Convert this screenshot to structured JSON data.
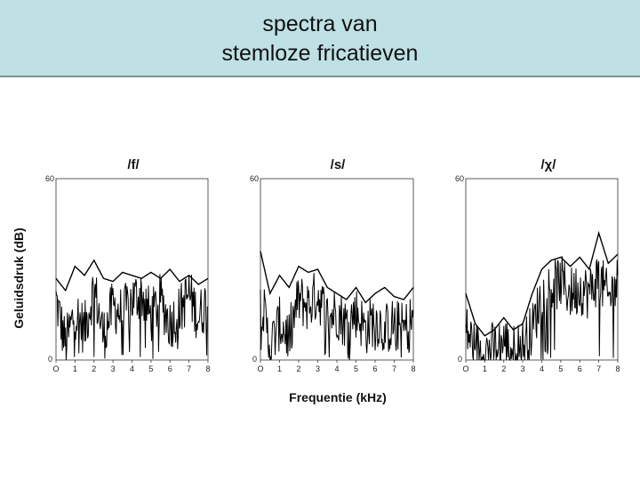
{
  "slide": {
    "title_line1": "spectra van",
    "title_line2": "stemloze fricatieven",
    "header_color": "#bfe0e4"
  },
  "chart_data": {
    "type": "line",
    "xlabel": "Frequentie (kHz)",
    "ylabel": "Geluidsdruk (dB)",
    "xlim": [
      0,
      8
    ],
    "ylim": [
      0,
      60
    ],
    "x_tick_labels": [
      "O",
      "1",
      "2",
      "3",
      "4",
      "5",
      "6",
      "7",
      "8"
    ],
    "y_tick_labels": [
      "0",
      "60"
    ],
    "panels": [
      {
        "title": "/f/",
        "envelope": {
          "x": [
            0,
            0.5,
            1,
            1.5,
            2,
            2.5,
            3,
            3.5,
            4,
            4.5,
            5,
            5.5,
            6,
            6.5,
            7,
            7.5,
            8
          ],
          "y": [
            27,
            23,
            31,
            28,
            33,
            27,
            26,
            29,
            28,
            27,
            29,
            27,
            30,
            26,
            28,
            25,
            27
          ]
        },
        "spectrum": {
          "x": [
            0,
            0.5,
            1,
            1.5,
            2,
            2.5,
            3,
            3.5,
            4,
            4.5,
            5,
            5.5,
            6,
            6.5,
            7,
            7.5,
            8
          ],
          "y": [
            20,
            5,
            16,
            10,
            24,
            8,
            18,
            15,
            20,
            22,
            14,
            20,
            12,
            16,
            22,
            14,
            20
          ],
          "noise_min": 0,
          "noise_max": 32
        }
      },
      {
        "title": "/s/",
        "envelope": {
          "x": [
            0,
            0.5,
            1,
            1.5,
            2,
            2.5,
            3,
            3.5,
            4,
            4.5,
            5,
            5.5,
            6,
            6.5,
            7,
            7.5,
            8
          ],
          "y": [
            36,
            22,
            28,
            24,
            31,
            29,
            30,
            24,
            22,
            20,
            24,
            19,
            22,
            24,
            21,
            20,
            24
          ]
        },
        "spectrum": {
          "x": [
            0,
            0.5,
            1,
            1.5,
            2,
            2.5,
            3,
            3.5,
            4,
            4.5,
            5,
            5.5,
            6,
            6.5,
            7,
            7.5,
            8
          ],
          "y": [
            22,
            4,
            12,
            8,
            20,
            18,
            22,
            14,
            16,
            12,
            16,
            10,
            14,
            10,
            12,
            10,
            14
          ],
          "noise_min": 0,
          "noise_max": 36
        }
      },
      {
        "title": "/χ/",
        "envelope": {
          "x": [
            0,
            0.5,
            1,
            1.5,
            2,
            2.5,
            3,
            3.5,
            4,
            4.5,
            5,
            5.5,
            6,
            6.5,
            7,
            7.5,
            8
          ],
          "y": [
            22,
            12,
            8,
            10,
            14,
            10,
            12,
            22,
            30,
            33,
            34,
            31,
            34,
            30,
            42,
            32,
            35
          ]
        },
        "spectrum": {
          "x": [
            0,
            0.5,
            1,
            1.5,
            2,
            2.5,
            3,
            3.5,
            4,
            4.5,
            5,
            5.5,
            6,
            6.5,
            7,
            7.5,
            8
          ],
          "y": [
            10,
            4,
            3,
            4,
            6,
            3,
            5,
            10,
            22,
            24,
            26,
            22,
            24,
            22,
            28,
            20,
            26
          ],
          "noise_min": 0,
          "noise_max": 40
        }
      }
    ]
  }
}
